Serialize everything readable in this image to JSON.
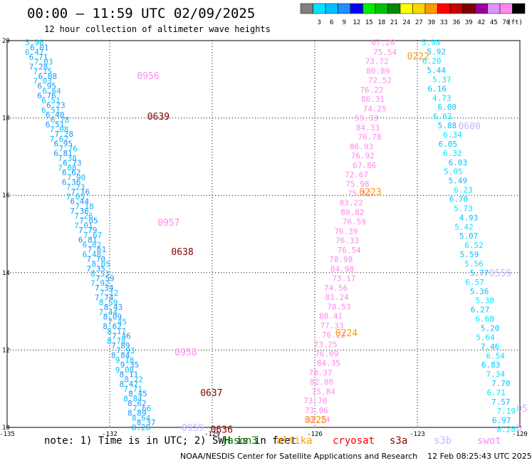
{
  "header": {
    "title": "00:00 – 11:59 UTC 02/09/2025",
    "subtitle": "12 hour collection of altimeter wave heights"
  },
  "legend": {
    "unit": "(ft)",
    "swatches": [
      {
        "label": "",
        "color": "#808080"
      },
      {
        "label": "3",
        "color": "#00e5ff"
      },
      {
        "label": "6",
        "color": "#00bfff"
      },
      {
        "label": "9",
        "color": "#1e90ff"
      },
      {
        "label": "12",
        "color": "#0000ff"
      },
      {
        "label": "15",
        "color": "#00ee00"
      },
      {
        "label": "18",
        "color": "#00c000"
      },
      {
        "label": "21",
        "color": "#008800"
      },
      {
        "label": "24",
        "color": "#ffff00"
      },
      {
        "label": "27",
        "color": "#ffd700"
      },
      {
        "label": "30",
        "color": "#ff9900"
      },
      {
        "label": "33",
        "color": "#ff0000"
      },
      {
        "label": "36",
        "color": "#cc0000"
      },
      {
        "label": "39",
        "color": "#800000"
      },
      {
        "label": "42",
        "color": "#990099"
      },
      {
        "label": "45",
        "color": "#d896ff"
      },
      {
        "label": "70",
        "color": "#ff88ee"
      },
      {
        "label": "",
        "color": "#000000"
      }
    ]
  },
  "footer": {
    "note": "note: 1) Time is in UTC; 2) SWH is in feet",
    "satellites": [
      {
        "name": "jason3",
        "color": "#008000"
      },
      {
        "name": "altika",
        "color": "#ff9900"
      },
      {
        "name": "cryosat",
        "color": "#ff0000"
      },
      {
        "name": "s3a",
        "color": "#880000"
      },
      {
        "name": "s3b",
        "color": "#c8b4ff"
      },
      {
        "name": "swot",
        "color": "#ff88ee"
      }
    ],
    "credit": "NOAA/NESDIS Center for Satellite Applications and Research    12 Feb 08:25:43 UTC 2025"
  },
  "chart_data": {
    "type": "scatter",
    "title": "12 hour collection of altimeter wave heights",
    "xlim": [
      -135,
      -120
    ],
    "ylim": [
      10,
      20
    ],
    "x_ticks": [
      "-135",
      "-132",
      "-129",
      "-126",
      "-123",
      "-120"
    ],
    "y_ticks": [
      "10",
      "12",
      "14",
      "16",
      "18",
      "20"
    ],
    "grid": true,
    "tracks": [
      {
        "name": "track-1",
        "start": [
          -134.2,
          19.95
        ],
        "end": [
          -131.0,
          10.0
        ],
        "values": [
          "5.96",
          "6.01",
          "6.47",
          "6.71",
          "7.03",
          "7.28",
          "7.15",
          "6.88",
          "7.03",
          "6.95",
          "6.64",
          "6.76",
          "6.51",
          "6.23",
          "6.51",
          "6.40",
          "6.78",
          "6.51",
          "7.08",
          "7.28",
          "7.62",
          "6.95",
          "7.76",
          "6.81",
          "7.38",
          "6.73",
          "7.08",
          "6.62",
          "7.90",
          "6.36",
          "7.23",
          "7.16",
          "7.05",
          "6.44",
          "7.18",
          "7.36",
          "7.26",
          "7.05",
          "7.01",
          "7.79",
          "7.67",
          "6.81",
          "6.82",
          "7.61",
          "6.48",
          "7.70",
          "8.05",
          "7.35",
          "8.53",
          "7.59",
          "7.92",
          "7.34",
          "7.12",
          "7.74",
          "8.59",
          "8.43",
          "7.44",
          "8.09",
          "7.45",
          "8.62",
          "8.17",
          "7.46",
          "8.78",
          "7.89",
          "7.93",
          "8.84",
          "9.18",
          "9.35",
          "9.08",
          "8.11",
          "8.72",
          "8.47",
          "7.71",
          "8.45",
          "8.84",
          "8.62",
          "7.66",
          "8.89",
          "8.64",
          "8.37",
          "8.28"
        ],
        "colors": [
          "#00bfff",
          "#1e90ff"
        ]
      },
      {
        "name": "track-2",
        "start": [
          -124.0,
          19.95
        ],
        "end": [
          -126.0,
          10.2
        ],
        "values": [
          "67.28",
          "75.54",
          "73.72",
          "80.89",
          "72.52",
          "76.22",
          "86.31",
          "74.25",
          "59.33",
          "84.33",
          "76.78",
          "86.93",
          "76.92",
          "67.86",
          "72.67",
          "75.98",
          "75.52",
          "83.22",
          "80.82",
          "76.59",
          "76.39",
          "76.33",
          "76.54",
          "78.98",
          "84.98",
          "73.17",
          "74.56",
          "81.24",
          "78.53",
          "80.41",
          "77.33",
          "76.22",
          "73.25",
          "76.09",
          "84.35",
          "78.37",
          "82.80",
          "75.84",
          "73.70",
          "73.06",
          "69.24"
        ],
        "colors": [
          "#ff88ee"
        ]
      },
      {
        "name": "track-3",
        "start": [
          -122.6,
          19.95
        ],
        "end": [
          -120.4,
          9.95
        ],
        "values": [
          "5.98",
          "5.92",
          "6.20",
          "5.44",
          "5.37",
          "6.16",
          "4.73",
          "6.00",
          "6.63",
          "5.88",
          "6.34",
          "6.05",
          "6.32",
          "6.03",
          "5.05",
          "5.49",
          "6.23",
          "6.70",
          "5.73",
          "4.93",
          "5.42",
          "5.07",
          "6.52",
          "5.59",
          "5.56",
          "5.77",
          "6.57",
          "5.36",
          "5.38",
          "6.27",
          "6.68",
          "5.20",
          "5.64",
          "7.46",
          "6.54",
          "6.83",
          "7.34",
          "7.70",
          "6.71",
          "7.57",
          "7.19",
          "6.97",
          "8.28"
        ],
        "colors": [
          "#00e5ff",
          "#00bfff"
        ]
      }
    ],
    "time_labels": [
      {
        "text": "0956",
        "lon": -131.2,
        "lat": 19.1,
        "color": "#ff88ee"
      },
      {
        "text": "0639",
        "lon": -130.9,
        "lat": 18.05,
        "color": "#800000"
      },
      {
        "text": "0957",
        "lon": -130.6,
        "lat": 15.3,
        "color": "#ff88ee"
      },
      {
        "text": "0638",
        "lon": -130.2,
        "lat": 14.55,
        "color": "#800000"
      },
      {
        "text": "0958",
        "lon": -130.1,
        "lat": 11.95,
        "color": "#ff88ee"
      },
      {
        "text": "0637",
        "lon": -129.35,
        "lat": 10.9,
        "color": "#800000"
      },
      {
        "text": "0959",
        "lon": -129.9,
        "lat": 10.0,
        "color": "#c8b4ff"
      },
      {
        "text": "0636",
        "lon": -129.05,
        "lat": 9.95,
        "color": "#800000"
      },
      {
        "text": "0222",
        "lon": -123.3,
        "lat": 19.6,
        "color": "#ff9900"
      },
      {
        "text": "0223",
        "lon": -124.7,
        "lat": 16.1,
        "color": "#ff9900"
      },
      {
        "text": "0224",
        "lon": -125.4,
        "lat": 12.45,
        "color": "#ff9900"
      },
      {
        "text": "0225",
        "lon": -126.3,
        "lat": 10.2,
        "color": "#ff9900"
      },
      {
        "text": "0600",
        "lon": -121.8,
        "lat": 17.8,
        "color": "#c8b4ff"
      },
      {
        "text": "0559",
        "lon": -120.9,
        "lat": 14.0,
        "color": "#c8b4ff"
      },
      {
        "text": "05",
        "lon": -120.1,
        "lat": 10.5,
        "color": "#c8b4ff"
      },
      {
        "text": "0",
        "lon": -120.1,
        "lat": 10.0,
        "color": "#c8b4ff"
      }
    ]
  }
}
